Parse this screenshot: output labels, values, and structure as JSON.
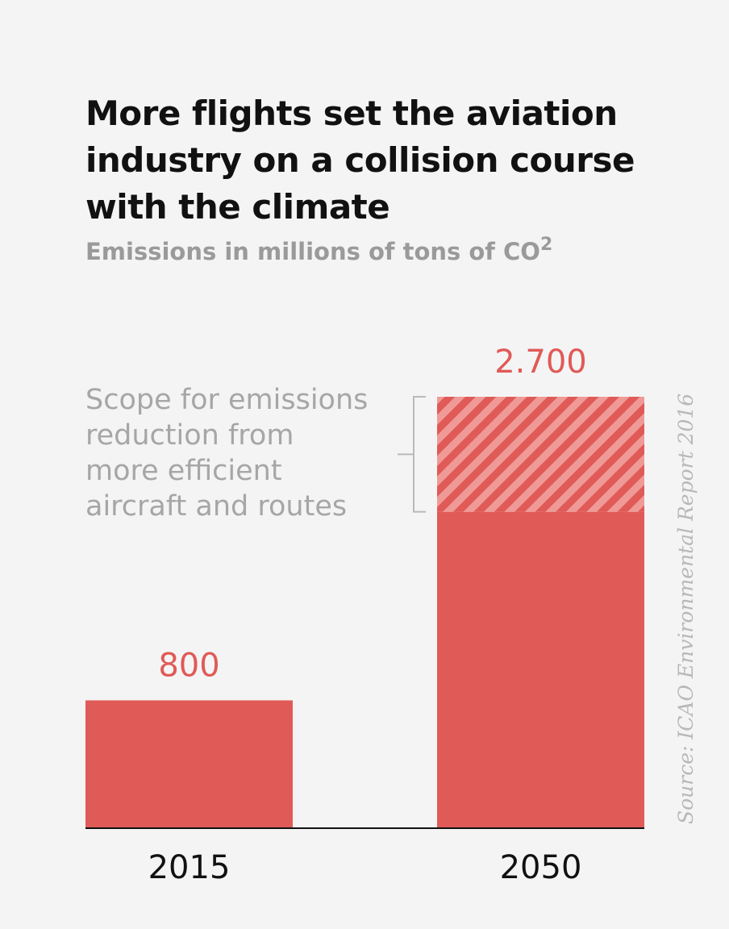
{
  "title": "More flights set the aviation industry on a collision course with the climate",
  "subtitle": "Emissions in millions of tons of CO",
  "subtitle_superscript": "2",
  "annotation_lines": [
    "Scope for emissions",
    "reduction from",
    "more efficient",
    "aircraft and routes"
  ],
  "source": "Source: ICAO Environmental Report 2016",
  "colors": {
    "bar": "#e05a57",
    "hatch_light": "#ef9a96",
    "value_label": "#e05a57",
    "axis": "#111111",
    "bracket": "#b9b9b9"
  },
  "chart_data": {
    "type": "bar",
    "title": "More flights set the aviation industry on a collision course with the climate",
    "subtitle": "Emissions in millions of tons of CO2",
    "categories": [
      "2015",
      "2050"
    ],
    "values": [
      800,
      2700
    ],
    "value_labels": [
      "800",
      "2.700"
    ],
    "reduction_scope": {
      "category": "2050",
      "from": 1980,
      "to": 2700,
      "pattern": "hatched"
    },
    "ylim": [
      0,
      2700
    ],
    "xlabel": "",
    "ylabel": "",
    "grid": false,
    "legend": "none"
  }
}
